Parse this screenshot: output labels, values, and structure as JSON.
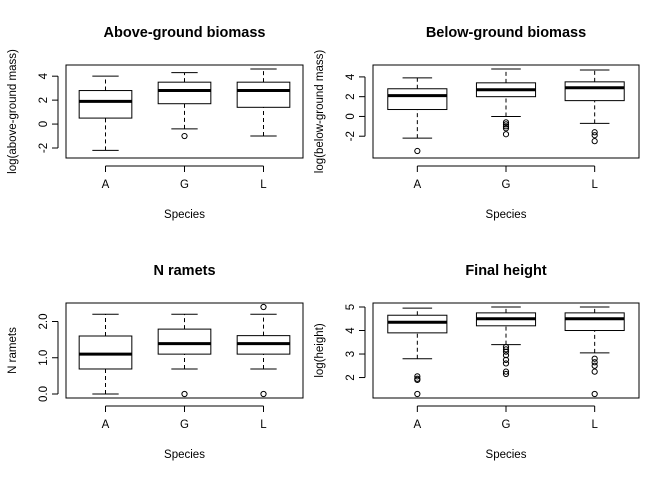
{
  "chart_data": [
    {
      "type": "boxplot",
      "title": "Above-ground biomass",
      "xlabel": "Species",
      "ylabel": "log(above-ground mass)",
      "categories": [
        "A",
        "G",
        "L"
      ],
      "yticks": [
        -2,
        0,
        2,
        4
      ],
      "ylim": [
        -2.5,
        4.6
      ],
      "boxes": [
        {
          "name": "A",
          "whisker_low": -2.2,
          "q1": 0.5,
          "median": 1.9,
          "q3": 2.8,
          "whisker_high": 4.0,
          "outliers": []
        },
        {
          "name": "G",
          "whisker_low": -0.4,
          "q1": 1.7,
          "median": 2.8,
          "q3": 3.5,
          "whisker_high": 4.3,
          "outliers": [
            -1.0
          ]
        },
        {
          "name": "L",
          "whisker_low": -1.0,
          "q1": 1.4,
          "median": 2.8,
          "q3": 3.5,
          "whisker_high": 4.6,
          "outliers": []
        }
      ]
    },
    {
      "type": "boxplot",
      "title": "Below-ground biomass",
      "xlabel": "Species",
      "ylabel": "log(below-ground mass)",
      "categories": [
        "A",
        "G",
        "L"
      ],
      "yticks": [
        -2,
        0,
        2,
        4
      ],
      "ylim": [
        -3.8,
        4.8
      ],
      "boxes": [
        {
          "name": "A",
          "whisker_low": -2.2,
          "q1": 0.7,
          "median": 2.1,
          "q3": 2.8,
          "whisker_high": 3.9,
          "outliers": [
            -3.5
          ]
        },
        {
          "name": "G",
          "whisker_low": 0.0,
          "q1": 2.0,
          "median": 2.7,
          "q3": 3.4,
          "whisker_high": 4.8,
          "outliers": [
            -0.6,
            -0.8,
            -1.0,
            -1.2,
            -1.8
          ]
        },
        {
          "name": "L",
          "whisker_low": -0.7,
          "q1": 1.6,
          "median": 2.9,
          "q3": 3.5,
          "whisker_high": 4.7,
          "outliers": [
            -1.6,
            -1.9,
            -2.5
          ]
        }
      ]
    },
    {
      "type": "boxplot",
      "title": "N ramets",
      "xlabel": "Species",
      "ylabel": "N ramets",
      "categories": [
        "A",
        "G",
        "L"
      ],
      "yticks": [
        0.0,
        1.0,
        2.0
      ],
      "ytick_labels": [
        "0.0",
        "1.0",
        "2.0"
      ],
      "ylim": [
        0.0,
        2.4
      ],
      "boxes": [
        {
          "name": "A",
          "whisker_low": 0.0,
          "q1": 0.69,
          "median": 1.1,
          "q3": 1.6,
          "whisker_high": 2.2,
          "outliers": []
        },
        {
          "name": "G",
          "whisker_low": 0.69,
          "q1": 1.1,
          "median": 1.39,
          "q3": 1.79,
          "whisker_high": 2.2,
          "outliers": [
            0.0
          ]
        },
        {
          "name": "L",
          "whisker_low": 0.69,
          "q1": 1.1,
          "median": 1.39,
          "q3": 1.61,
          "whisker_high": 2.2,
          "outliers": [
            0.0,
            2.4
          ]
        }
      ]
    },
    {
      "type": "boxplot",
      "title": "Final height",
      "xlabel": "Species",
      "ylabel": "log(height)",
      "categories": [
        "A",
        "G",
        "L"
      ],
      "yticks": [
        2,
        3,
        4,
        5
      ],
      "ylim": [
        1.3,
        5.0
      ],
      "boxes": [
        {
          "name": "A",
          "whisker_low": 2.8,
          "q1": 3.9,
          "median": 4.35,
          "q3": 4.65,
          "whisker_high": 4.95,
          "outliers": [
            2.05,
            1.95,
            1.9,
            1.3
          ]
        },
        {
          "name": "G",
          "whisker_low": 3.4,
          "q1": 4.2,
          "median": 4.5,
          "q3": 4.75,
          "whisker_high": 5.0,
          "outliers": [
            3.3,
            3.2,
            3.1,
            2.95,
            2.75,
            2.6,
            2.25,
            2.15
          ]
        },
        {
          "name": "L",
          "whisker_low": 3.05,
          "q1": 4.0,
          "median": 4.5,
          "q3": 4.75,
          "whisker_high": 5.0,
          "outliers": [
            2.8,
            2.65,
            2.5,
            2.25,
            1.3
          ]
        }
      ]
    }
  ]
}
